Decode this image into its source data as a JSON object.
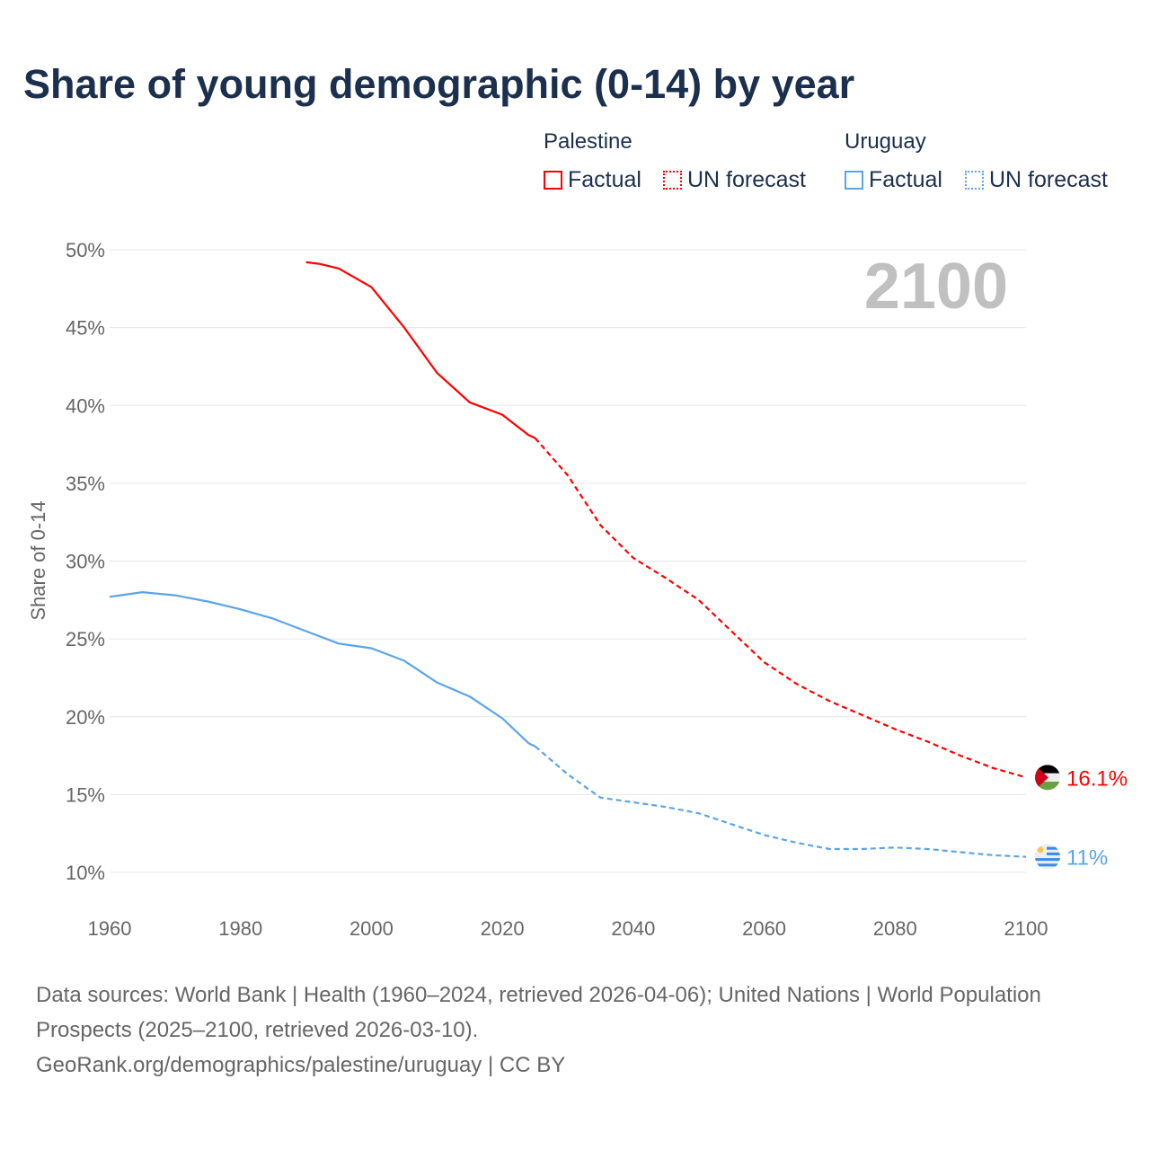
{
  "chart_data": {
    "type": "line",
    "title": "Share of young demographic (0-14) by year",
    "ylabel": "Share of 0-14",
    "xlabel": "",
    "xlim": [
      1960,
      2100
    ],
    "ylim": [
      10,
      50
    ],
    "x_ticks": [
      "1960",
      "1980",
      "2000",
      "2020",
      "2040",
      "2060",
      "2080",
      "2100"
    ],
    "y_ticks": [
      "10%",
      "15%",
      "20%",
      "25%",
      "30%",
      "35%",
      "40%",
      "45%",
      "50%"
    ],
    "grid": true,
    "year_label": "2100",
    "legend": {
      "groups": [
        {
          "country": "Palestine",
          "items": [
            "Factual",
            "UN forecast"
          ]
        },
        {
          "country": "Uruguay",
          "items": [
            "Factual",
            "UN forecast"
          ]
        }
      ],
      "placement": "top-right"
    },
    "series": [
      {
        "name": "Palestine",
        "color": "#ff0000",
        "end_label": "16.1%",
        "factual": {
          "x": [
            1990,
            1992,
            1995,
            2000,
            2005,
            2010,
            2015,
            2020,
            2024,
            2025
          ],
          "y": [
            49.2,
            49.1,
            48.8,
            47.6,
            45.0,
            42.1,
            40.2,
            39.4,
            38.1,
            37.9
          ]
        },
        "forecast": {
          "x": [
            2025,
            2030,
            2035,
            2040,
            2045,
            2050,
            2055,
            2060,
            2065,
            2070,
            2075,
            2080,
            2085,
            2090,
            2095,
            2100
          ],
          "y": [
            37.9,
            35.5,
            32.3,
            30.2,
            28.9,
            27.5,
            25.5,
            23.5,
            22.1,
            21.0,
            20.1,
            19.2,
            18.4,
            17.5,
            16.7,
            16.1
          ]
        }
      },
      {
        "name": "Uruguay",
        "color": "#5ba4e8",
        "end_label": "11%",
        "factual": {
          "x": [
            1960,
            1965,
            1970,
            1975,
            1980,
            1985,
            1990,
            1995,
            2000,
            2005,
            2010,
            2015,
            2020,
            2024,
            2025
          ],
          "y": [
            27.7,
            28.0,
            27.8,
            27.4,
            26.9,
            26.3,
            25.5,
            24.7,
            24.4,
            23.6,
            22.2,
            21.3,
            19.9,
            18.3,
            18.1
          ]
        },
        "forecast": {
          "x": [
            2025,
            2030,
            2035,
            2040,
            2045,
            2050,
            2055,
            2060,
            2065,
            2070,
            2075,
            2080,
            2085,
            2090,
            2095,
            2100
          ],
          "y": [
            18.1,
            16.3,
            14.8,
            14.5,
            14.2,
            13.8,
            13.1,
            12.4,
            11.9,
            11.5,
            11.5,
            11.6,
            11.5,
            11.3,
            11.1,
            11.0
          ]
        }
      }
    ]
  },
  "footer": {
    "sources": "Data sources: World Bank | Health (1960–2024, retrieved 2026-04-06); United Nations | World Population Prospects (2025–2100, retrieved 2026-03-10).",
    "credit": "GeoRank.org/demographics/palestine/uruguay | CC BY"
  },
  "icons": {
    "palestine": "palestine-flag-icon",
    "uruguay": "uruguay-flag-icon"
  }
}
